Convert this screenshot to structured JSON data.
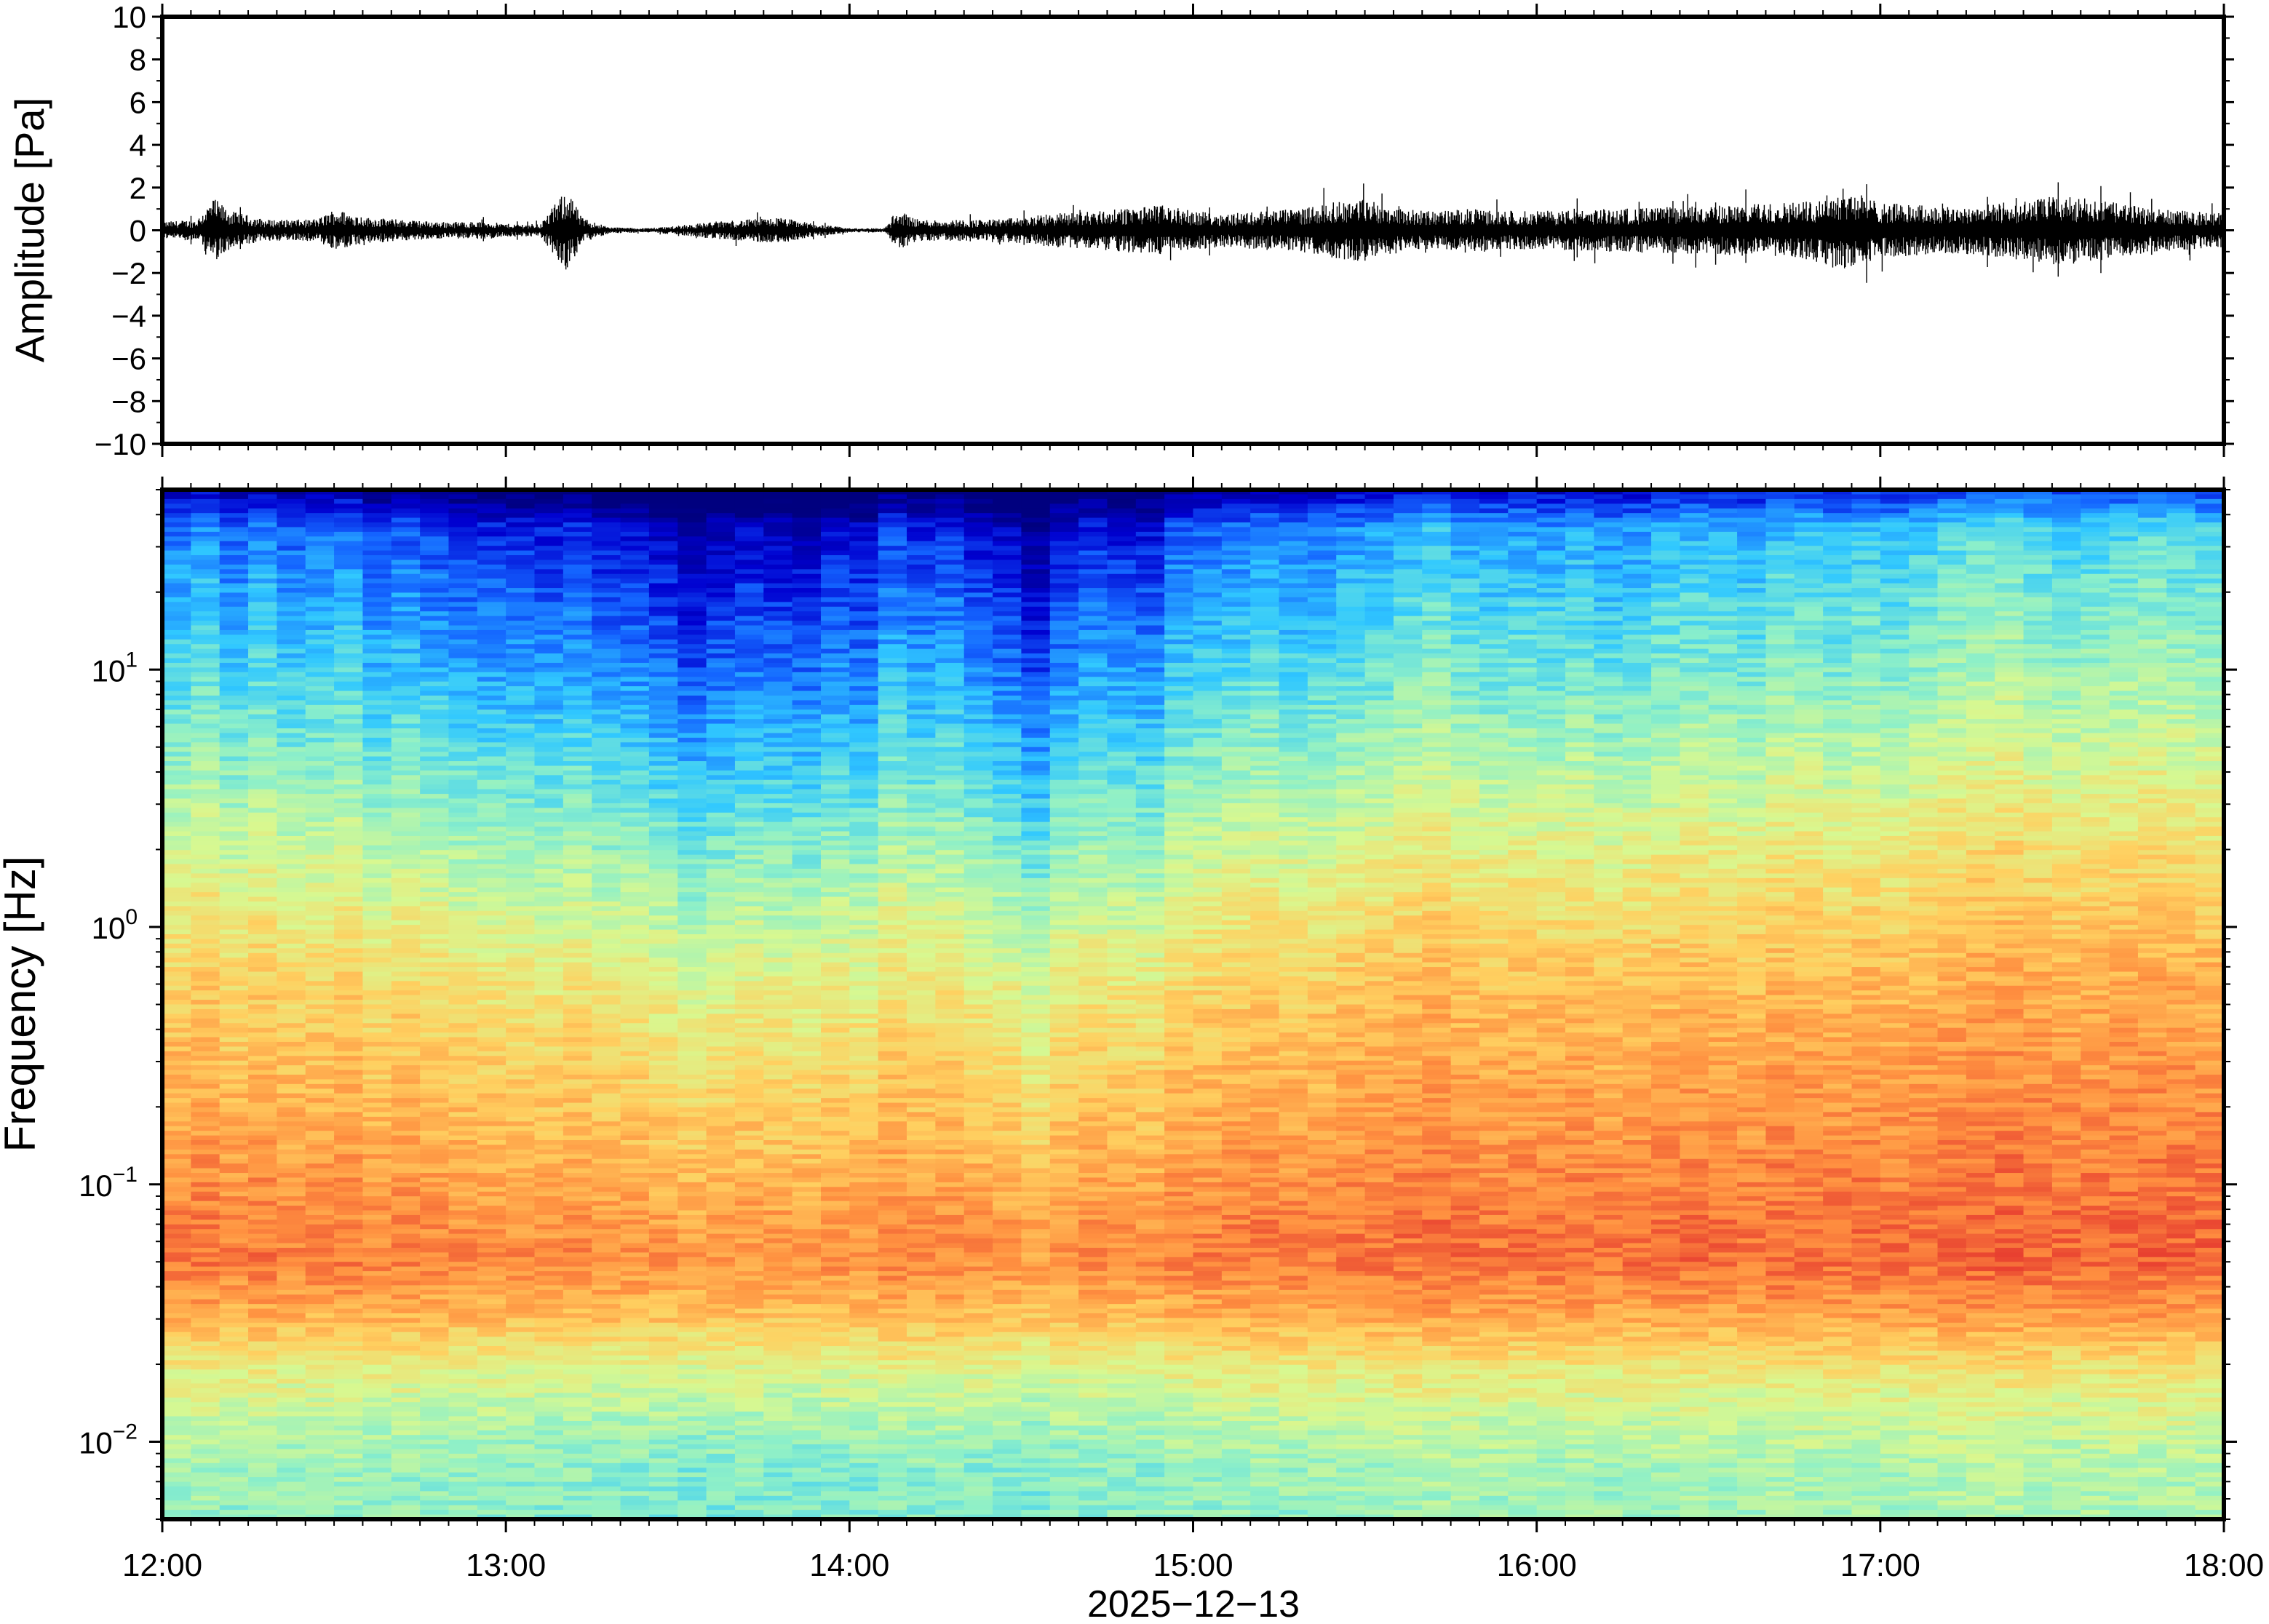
{
  "chart_data": [
    {
      "type": "line",
      "ylabel": "Amplitude [Pa]",
      "ylim": [
        -10,
        10
      ],
      "yticks": [
        10,
        8,
        6,
        4,
        2,
        0,
        -2,
        -4,
        -6,
        -8,
        -10
      ],
      "ytick_labels": [
        "10",
        "8",
        "6",
        "4",
        "2",
        "0",
        "−2",
        "−4",
        "−6",
        "−8",
        "−10"
      ],
      "xlim": [
        "12:00",
        "18:00"
      ],
      "grid": false,
      "line_color": "#000000",
      "envelope": {
        "description_hours": "approximate peak absolute amplitude (Pa) over time, hours after 12:00",
        "t": [
          0.0,
          0.1,
          0.15,
          0.2,
          0.3,
          0.45,
          0.5,
          0.6,
          0.8,
          0.95,
          1.0,
          1.1,
          1.18,
          1.22,
          1.3,
          1.4,
          1.5,
          1.6,
          1.7,
          1.8,
          1.9,
          2.0,
          2.1,
          2.15,
          2.2,
          2.3,
          2.4,
          2.5,
          2.6,
          2.7,
          2.8,
          2.9,
          3.0,
          3.1,
          3.2,
          3.3,
          3.4,
          3.5,
          3.6,
          3.7,
          3.8,
          3.9,
          4.0,
          4.2,
          4.4,
          4.6,
          4.8,
          4.9,
          5.0,
          5.2,
          5.4,
          5.5,
          5.6,
          5.8,
          6.0
        ],
        "amp": [
          0.4,
          0.5,
          1.5,
          0.9,
          0.5,
          0.5,
          1.0,
          0.6,
          0.4,
          0.4,
          0.3,
          0.3,
          2.0,
          0.6,
          0.15,
          0.1,
          0.2,
          0.4,
          0.5,
          0.6,
          0.3,
          0.1,
          0.1,
          0.9,
          0.5,
          0.5,
          0.5,
          0.6,
          0.8,
          0.9,
          1.0,
          1.2,
          0.9,
          0.8,
          0.9,
          1.0,
          1.3,
          1.5,
          1.0,
          0.9,
          1.0,
          0.9,
          0.9,
          1.0,
          1.1,
          1.2,
          1.4,
          2.0,
          1.3,
          1.1,
          1.3,
          1.6,
          1.5,
          1.0,
          0.8
        ]
      }
    },
    {
      "type": "heatmap",
      "ylabel": "Frequency [Hz]",
      "yscale": "log",
      "ylim": [
        0.005,
        50
      ],
      "yticks": [
        0.01,
        0.1,
        1,
        10
      ],
      "ytick_labels": [
        {
          "base": "10",
          "exp": "−2"
        },
        {
          "base": "10",
          "exp": "−1"
        },
        {
          "base": "10",
          "exp": "0"
        },
        {
          "base": "10",
          "exp": "1"
        }
      ],
      "xlabel": "2025−12−13",
      "xticks": [
        "12:00",
        "13:00",
        "14:00",
        "15:00",
        "16:00",
        "17:00",
        "18:00"
      ],
      "xlim": [
        "12:00",
        "18:00"
      ],
      "colormap": "jet-like (dark blue = low power, red = high power)",
      "colors": [
        "#00007f",
        "#0000d0",
        "#1464ff",
        "#30c8ff",
        "#8ef0c8",
        "#d8f890",
        "#ffd060",
        "#ff9040",
        "#e84030"
      ],
      "columns": 72,
      "column_loudness": {
        "description": "relative overall power per time column (0 quiet .. 1 loud), 5-minute columns starting 12:00",
        "values": [
          0.55,
          0.6,
          0.5,
          0.58,
          0.5,
          0.52,
          0.55,
          0.45,
          0.5,
          0.45,
          0.42,
          0.4,
          0.4,
          0.38,
          0.42,
          0.35,
          0.35,
          0.3,
          0.22,
          0.28,
          0.32,
          0.3,
          0.28,
          0.35,
          0.32,
          0.45,
          0.4,
          0.42,
          0.35,
          0.3,
          0.2,
          0.35,
          0.4,
          0.38,
          0.36,
          0.5,
          0.52,
          0.55,
          0.58,
          0.55,
          0.56,
          0.6,
          0.62,
          0.66,
          0.7,
          0.65,
          0.62,
          0.64,
          0.62,
          0.65,
          0.6,
          0.62,
          0.66,
          0.68,
          0.66,
          0.64,
          0.7,
          0.7,
          0.66,
          0.7,
          0.68,
          0.72,
          0.76,
          0.78,
          0.8,
          0.75,
          0.72,
          0.74,
          0.76,
          0.78,
          0.76,
          0.74
        ]
      },
      "profile": {
        "description": "typical colormap level (0..8) versus frequency",
        "freq": [
          0.005,
          0.008,
          0.012,
          0.02,
          0.03,
          0.05,
          0.08,
          0.15,
          0.3,
          0.6,
          1.2,
          2.5,
          5,
          10,
          20,
          35,
          50
        ],
        "level": [
          4.1,
          4.2,
          4.6,
          5.4,
          6.4,
          7.2,
          7.0,
          6.6,
          6.2,
          5.8,
          5.2,
          4.5,
          3.8,
          3.1,
          2.5,
          1.9,
          1.2
        ]
      }
    }
  ]
}
